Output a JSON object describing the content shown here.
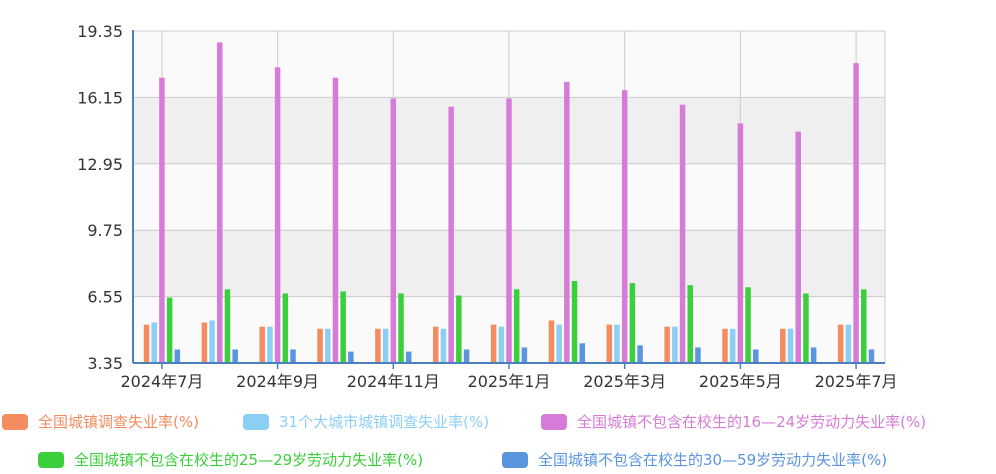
{
  "chart_data": {
    "type": "bar",
    "title": "",
    "xlabel": "",
    "ylabel": "",
    "ylim": [
      3.35,
      19.35
    ],
    "yticks": [
      "3.35",
      "6.55",
      "9.75",
      "12.95",
      "16.15",
      "19.35"
    ],
    "categories": [
      "2024年7月",
      "2024年8月",
      "2024年9月",
      "2024年10月",
      "2024年11月",
      "2024年12月",
      "2025年1月",
      "2025年2月",
      "2025年3月",
      "2025年4月",
      "2025年5月",
      "2025年6月",
      "2025年7月"
    ],
    "xtick_labels": [
      "2024年7月",
      "2024年9月",
      "2024年11月",
      "2025年1月",
      "2025年3月",
      "2025年5月",
      "2025年7月"
    ],
    "grid": true,
    "legend_position": "bottom",
    "series": [
      {
        "name": "全国城镇调查失业率(%)",
        "color": "#f58c5f",
        "values": [
          5.2,
          5.3,
          5.1,
          5.0,
          5.0,
          5.1,
          5.2,
          5.4,
          5.2,
          5.1,
          5.0,
          5.0,
          5.2
        ]
      },
      {
        "name": "31个大城市城镇调查失业率(%)",
        "color": "#8ccff5",
        "values": [
          5.3,
          5.4,
          5.1,
          5.0,
          5.0,
          5.0,
          5.1,
          5.2,
          5.2,
          5.1,
          5.0,
          5.0,
          5.2
        ]
      },
      {
        "name": "全国城镇不包含在校生的16—24岁劳动力失业率(%)",
        "color": "#d67bd8",
        "values": [
          17.1,
          18.8,
          17.6,
          17.1,
          16.1,
          15.7,
          16.1,
          16.9,
          16.5,
          15.8,
          14.9,
          14.5,
          17.8
        ]
      },
      {
        "name": "全国城镇不包含在校生的25—29岁劳动力失业率(%)",
        "color": "#3ccf3c",
        "values": [
          6.5,
          6.9,
          6.7,
          6.8,
          6.7,
          6.6,
          6.9,
          7.3,
          7.2,
          7.1,
          7.0,
          6.7,
          6.9
        ]
      },
      {
        "name": "全国城镇不包含在校生的30—59岁劳动力失业率(%)",
        "color": "#5b95e0",
        "values": [
          4.0,
          4.0,
          4.0,
          3.9,
          3.9,
          4.0,
          4.1,
          4.3,
          4.2,
          4.1,
          4.0,
          4.1,
          4.0
        ]
      }
    ]
  }
}
